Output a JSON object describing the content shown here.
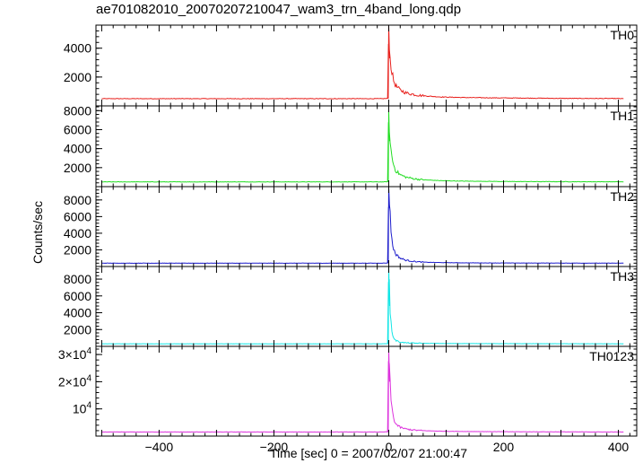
{
  "chart_data": {
    "type": "line",
    "title": "ae701082010_20070207210047_wam3_trn_4band_long.qdp",
    "xlabel": "Time [sec] 0 = 2007/02/07 21:00:47",
    "ylabel": "Counts/sec",
    "xlim": [
      -510,
      432
    ],
    "x_ticks": [
      -400,
      -200,
      0,
      200,
      400
    ],
    "grid": false,
    "panels": [
      {
        "name": "TH0",
        "color": "#e8201c",
        "ylim": [
          0,
          5600
        ],
        "y_ticks": [
          2000,
          4000
        ],
        "y_tick_labels": [
          "2000",
          "4000"
        ],
        "baseline": 500,
        "x": [
          -500,
          -10,
          -2,
          0,
          2,
          5,
          8,
          12,
          20,
          30,
          45,
          60,
          90,
          130,
          200,
          300,
          400,
          410
        ],
        "values": [
          500,
          500,
          520,
          5600,
          3300,
          2500,
          1800,
          1400,
          1100,
          900,
          780,
          700,
          620,
          580,
          550,
          520,
          510,
          500
        ]
      },
      {
        "name": "TH1",
        "color": "#22dd22",
        "ylim": [
          0,
          8500
        ],
        "y_ticks": [
          2000,
          4000,
          6000,
          8000
        ],
        "y_tick_labels": [
          "2000",
          "4000",
          "6000",
          "8000"
        ],
        "baseline": 500,
        "x": [
          -500,
          -10,
          -2,
          0,
          2,
          5,
          8,
          12,
          20,
          30,
          45,
          60,
          90,
          130,
          200,
          300,
          400,
          410
        ],
        "values": [
          500,
          500,
          520,
          8000,
          4800,
          3300,
          2400,
          1700,
          1250,
          1000,
          820,
          720,
          630,
          580,
          540,
          520,
          510,
          500
        ]
      },
      {
        "name": "TH2",
        "color": "#1c1ccc",
        "ylim": [
          0,
          9600
        ],
        "y_ticks": [
          2000,
          4000,
          6000,
          8000
        ],
        "y_tick_labels": [
          "2000",
          "4000",
          "6000",
          "8000"
        ],
        "baseline": 400,
        "x": [
          -500,
          -10,
          -2,
          0,
          2,
          5,
          8,
          12,
          20,
          30,
          45,
          60,
          90,
          130,
          200,
          300,
          400,
          410
        ],
        "values": [
          400,
          400,
          420,
          9600,
          7000,
          3300,
          2200,
          1500,
          1000,
          750,
          600,
          520,
          470,
          440,
          420,
          410,
          400,
          400
        ]
      },
      {
        "name": "TH3",
        "color": "#11e5e5",
        "ylim": [
          0,
          9500
        ],
        "y_ticks": [
          2000,
          4000,
          6000,
          8000
        ],
        "y_tick_labels": [
          "2000",
          "4000",
          "6000",
          "8000"
        ],
        "baseline": 300,
        "x": [
          -500,
          -10,
          -2,
          0,
          2,
          5,
          8,
          12,
          20,
          30,
          45,
          60,
          90,
          130,
          200,
          300,
          400,
          410
        ],
        "values": [
          300,
          300,
          320,
          9500,
          4800,
          1900,
          1100,
          700,
          500,
          420,
          380,
          360,
          340,
          330,
          320,
          310,
          300,
          300
        ]
      },
      {
        "name": "TH0123",
        "color": "#dd33dd",
        "ylim": [
          0,
          33000
        ],
        "y_ticks": [
          10000,
          20000,
          30000
        ],
        "y_tick_labels": [
          "10^4",
          "2×10^4",
          "3×10^4"
        ],
        "baseline": 1500,
        "x": [
          -500,
          -10,
          -2,
          0,
          2,
          5,
          8,
          12,
          20,
          30,
          45,
          60,
          90,
          130,
          200,
          300,
          400,
          410
        ],
        "values": [
          1500,
          1500,
          1600,
          32500,
          20000,
          11000,
          7000,
          4500,
          3200,
          2600,
          2200,
          2000,
          1800,
          1700,
          1600,
          1550,
          1500,
          1500
        ]
      }
    ]
  }
}
